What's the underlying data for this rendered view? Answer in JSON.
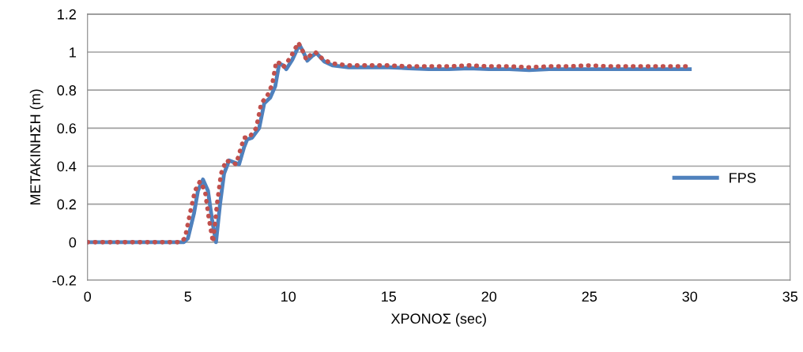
{
  "chart_data": {
    "type": "line",
    "xlabel": "ΧΡΟΝΟΣ (sec)",
    "ylabel": "ΜΕΤΑΚΙΝΗΣΗ (m)",
    "xlim": [
      0,
      35
    ],
    "xticks": [
      0,
      5,
      10,
      15,
      20,
      25,
      30,
      35
    ],
    "ylim": [
      -0.2,
      1.2
    ],
    "yticks": [
      -0.2,
      0,
      0.2,
      0.4,
      0.6,
      0.8,
      1,
      1.2
    ],
    "grid": "y",
    "legend": "right",
    "series": [
      {
        "name": "FPS",
        "color": "#4f81bd",
        "line_style": "solid",
        "x": [
          0,
          4.8,
          5.0,
          5.3,
          5.5,
          5.75,
          6.0,
          6.2,
          6.4,
          6.6,
          6.8,
          7.05,
          7.3,
          7.55,
          7.8,
          7.95,
          8.2,
          8.55,
          8.8,
          9.1,
          9.35,
          9.55,
          9.75,
          9.9,
          10.2,
          10.55,
          10.75,
          10.95,
          11.2,
          11.4,
          11.8,
          12.2,
          13,
          14,
          15,
          16,
          17,
          18,
          19,
          20,
          21,
          22,
          23,
          24,
          25,
          26,
          27,
          28,
          29,
          30
        ],
        "values": [
          0,
          0,
          0.02,
          0.15,
          0.27,
          0.33,
          0.27,
          0.12,
          0,
          0.2,
          0.36,
          0.43,
          0.42,
          0.41,
          0.5,
          0.54,
          0.55,
          0.6,
          0.73,
          0.76,
          0.82,
          0.94,
          0.93,
          0.91,
          0.96,
          1.04,
          1.0,
          0.955,
          0.98,
          0.995,
          0.95,
          0.93,
          0.92,
          0.92,
          0.92,
          0.915,
          0.91,
          0.91,
          0.915,
          0.91,
          0.91,
          0.905,
          0.91,
          0.91,
          0.91,
          0.91,
          0.91,
          0.91,
          0.91,
          0.91
        ]
      },
      {
        "color": "#c0504d",
        "line_style": "dotted",
        "x": [
          0,
          4.6,
          4.85,
          5.1,
          5.35,
          5.6,
          5.85,
          6.05,
          6.25,
          6.45,
          6.65,
          6.9,
          7.15,
          7.4,
          7.65,
          7.8,
          8.05,
          8.4,
          8.65,
          8.95,
          9.2,
          9.4,
          9.6,
          9.75,
          10.1,
          10.5,
          10.7,
          10.9,
          11.15,
          11.35,
          11.75,
          12.2,
          13,
          14,
          15,
          16,
          17,
          18,
          19,
          20,
          21,
          22,
          23,
          24,
          25,
          26,
          27,
          28,
          29,
          30
        ],
        "values": [
          0,
          0,
          0.02,
          0.15,
          0.27,
          0.32,
          0.27,
          0.12,
          0,
          0.2,
          0.36,
          0.43,
          0.42,
          0.41,
          0.5,
          0.55,
          0.55,
          0.6,
          0.73,
          0.77,
          0.83,
          0.95,
          0.94,
          0.92,
          0.97,
          1.05,
          1.01,
          0.96,
          0.99,
          1.0,
          0.96,
          0.94,
          0.93,
          0.93,
          0.93,
          0.925,
          0.925,
          0.925,
          0.93,
          0.925,
          0.925,
          0.92,
          0.925,
          0.925,
          0.93,
          0.925,
          0.925,
          0.925,
          0.925,
          0.925
        ]
      }
    ]
  }
}
